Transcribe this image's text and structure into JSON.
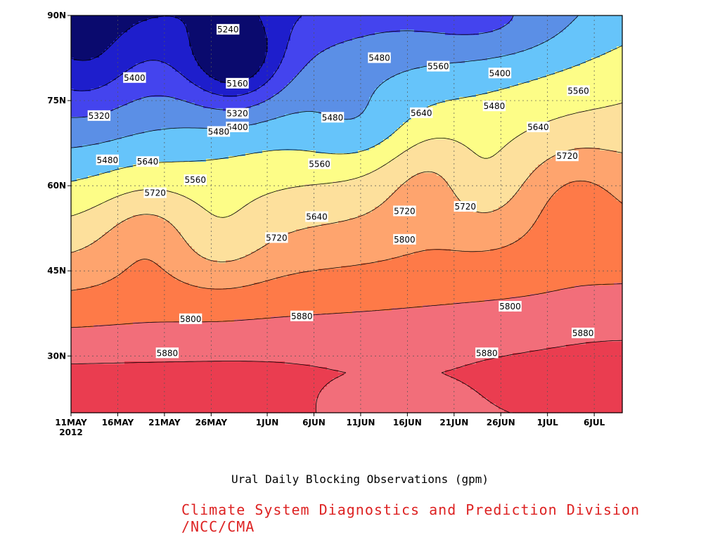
{
  "chart_data": {
    "type": "contour",
    "title": "Ural Daily Blocking Observations (gpm)",
    "credit": "Climate System Diagnostics and Prediction Division /NCC/CMA",
    "credit_color": "#dd2222",
    "xlabel": "",
    "ylabel": "",
    "x_ticks": [
      "11MAY",
      "16MAY",
      "21MAY",
      "26MAY",
      "1JUN",
      "6JUN",
      "11JUN",
      "16JUN",
      "21JUN",
      "26JUN",
      "1JUL",
      "6JUL"
    ],
    "x_tick_day": [
      0,
      5,
      10,
      15,
      21,
      26,
      31,
      36,
      41,
      46,
      51,
      56
    ],
    "x_year": "2012",
    "xlim_days": [
      0,
      59
    ],
    "y_ticks": [
      "30N",
      "45N",
      "60N",
      "75N",
      "90N"
    ],
    "y_tick_lat": [
      30,
      45,
      60,
      75,
      90
    ],
    "ylim": [
      20,
      90
    ],
    "grid": true,
    "levels": [
      5160,
      5240,
      5320,
      5400,
      5480,
      5560,
      5640,
      5720,
      5800,
      5880
    ],
    "fill_colors": {
      "below_5160": "#0a0a6e",
      "5160_5240": "#1e1ecc",
      "5240_5320": "#4444ee",
      "5320_5400": "#5b8fe6",
      "5400_5480": "#66c4fa",
      "5480_5560": "#fdfd87",
      "5560_5640": "#fde09c",
      "5640_5720": "#fea46e",
      "5720_5800": "#fe7a48",
      "5800_5880": "#f26e7a",
      "above_5880": "#ea3d50"
    },
    "contour_labels": [
      {
        "text": "5240",
        "day": 16.8,
        "lat": 87.5
      },
      {
        "text": "5160",
        "day": 17.8,
        "lat": 78
      },
      {
        "text": "5400",
        "day": 6.8,
        "lat": 79
      },
      {
        "text": "5320",
        "day": 3.0,
        "lat": 72.3
      },
      {
        "text": "5320",
        "day": 17.8,
        "lat": 72.7
      },
      {
        "text": "5400",
        "day": 17.8,
        "lat": 70.3
      },
      {
        "text": "5480",
        "day": 15.8,
        "lat": 69.5
      },
      {
        "text": "5480",
        "day": 3.9,
        "lat": 64.5
      },
      {
        "text": "5640",
        "day": 8.2,
        "lat": 64.2
      },
      {
        "text": "5560",
        "day": 13.3,
        "lat": 61
      },
      {
        "text": "5720",
        "day": 9.0,
        "lat": 58.7
      },
      {
        "text": "5480",
        "day": 28.0,
        "lat": 72
      },
      {
        "text": "5560",
        "day": 26.6,
        "lat": 63.8
      },
      {
        "text": "5640",
        "day": 26.3,
        "lat": 54.5
      },
      {
        "text": "5720",
        "day": 22.0,
        "lat": 50.8
      },
      {
        "text": "5480",
        "day": 33.0,
        "lat": 82.5
      },
      {
        "text": "5560",
        "day": 39.3,
        "lat": 81
      },
      {
        "text": "5400",
        "day": 45.9,
        "lat": 79.8
      },
      {
        "text": "5480",
        "day": 45.3,
        "lat": 74
      },
      {
        "text": "5640",
        "day": 37.5,
        "lat": 72.8
      },
      {
        "text": "5720",
        "day": 35.7,
        "lat": 55.5
      },
      {
        "text": "5800",
        "day": 35.7,
        "lat": 50.5
      },
      {
        "text": "5720",
        "day": 42.2,
        "lat": 56.3
      },
      {
        "text": "5560",
        "day": 54.3,
        "lat": 76.7
      },
      {
        "text": "5640",
        "day": 50.0,
        "lat": 70.3
      },
      {
        "text": "5720",
        "day": 53.1,
        "lat": 65.2
      },
      {
        "text": "5800",
        "day": 47.0,
        "lat": 38.7
      },
      {
        "text": "5800",
        "day": 12.8,
        "lat": 36.5
      },
      {
        "text": "5880",
        "day": 24.7,
        "lat": 37
      },
      {
        "text": "5880",
        "day": 10.3,
        "lat": 30.5
      },
      {
        "text": "5880",
        "day": 44.5,
        "lat": 30.5
      },
      {
        "text": "5880",
        "day": 54.8,
        "lat": 34
      }
    ]
  }
}
